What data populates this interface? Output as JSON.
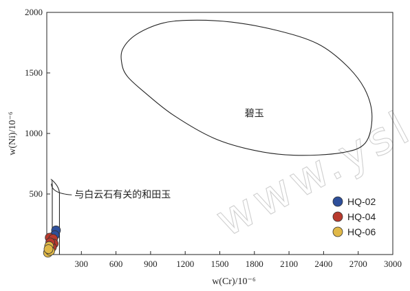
{
  "chart_data": {
    "type": "scatter",
    "title": "",
    "xlabel": "w(Cr)/10⁻⁶",
    "ylabel": "w(Ni)/10⁻⁶",
    "xlim": [
      0,
      3000
    ],
    "ylim": [
      0,
      2000
    ],
    "x_ticks": [
      300,
      600,
      900,
      1200,
      1500,
      1800,
      2100,
      2400,
      2700,
      3000
    ],
    "y_ticks": [
      500,
      1000,
      1500,
      2000
    ],
    "grid": false,
    "legend_position": "bottom-right",
    "regions": [
      {
        "name": "jasper",
        "label": "碧玉",
        "label_at": [
          1800,
          1140
        ],
        "boundary": [
          [
            650,
            1580
          ],
          [
            660,
            1700
          ],
          [
            780,
            1820
          ],
          [
            1000,
            1910
          ],
          [
            1250,
            1935
          ],
          [
            1600,
            1920
          ],
          [
            2000,
            1850
          ],
          [
            2350,
            1740
          ],
          [
            2600,
            1560
          ],
          [
            2760,
            1360
          ],
          [
            2820,
            1140
          ],
          [
            2760,
            920
          ],
          [
            2550,
            840
          ],
          [
            2150,
            820
          ],
          [
            1800,
            860
          ],
          [
            1450,
            960
          ],
          [
            1100,
            1150
          ],
          [
            860,
            1330
          ],
          [
            700,
            1470
          ],
          [
            650,
            1580
          ]
        ]
      },
      {
        "name": "dolomite-hetian-jade",
        "label": "与白云石有关的和田玉",
        "label_at": [
          300,
          470
        ],
        "boundary": [
          [
            0,
            0
          ],
          [
            0,
            560
          ],
          [
            40,
            620
          ],
          [
            110,
            500
          ],
          [
            110,
            0
          ]
        ]
      }
    ],
    "series": [
      {
        "name": "HQ-02",
        "color": "#2e4f9a",
        "points": [
          [
            80,
            200
          ],
          [
            70,
            160
          ]
        ]
      },
      {
        "name": "HQ-04",
        "color": "#b83a2e",
        "points": [
          [
            25,
            140
          ],
          [
            55,
            130
          ],
          [
            60,
            90
          ],
          [
            45,
            60
          ],
          [
            30,
            100
          ]
        ]
      },
      {
        "name": "HQ-06",
        "color": "#e0b848",
        "points": [
          [
            20,
            70
          ],
          [
            10,
            15
          ],
          [
            30,
            30
          ],
          [
            15,
            45
          ]
        ]
      }
    ]
  },
  "watermark": "www.ysl"
}
